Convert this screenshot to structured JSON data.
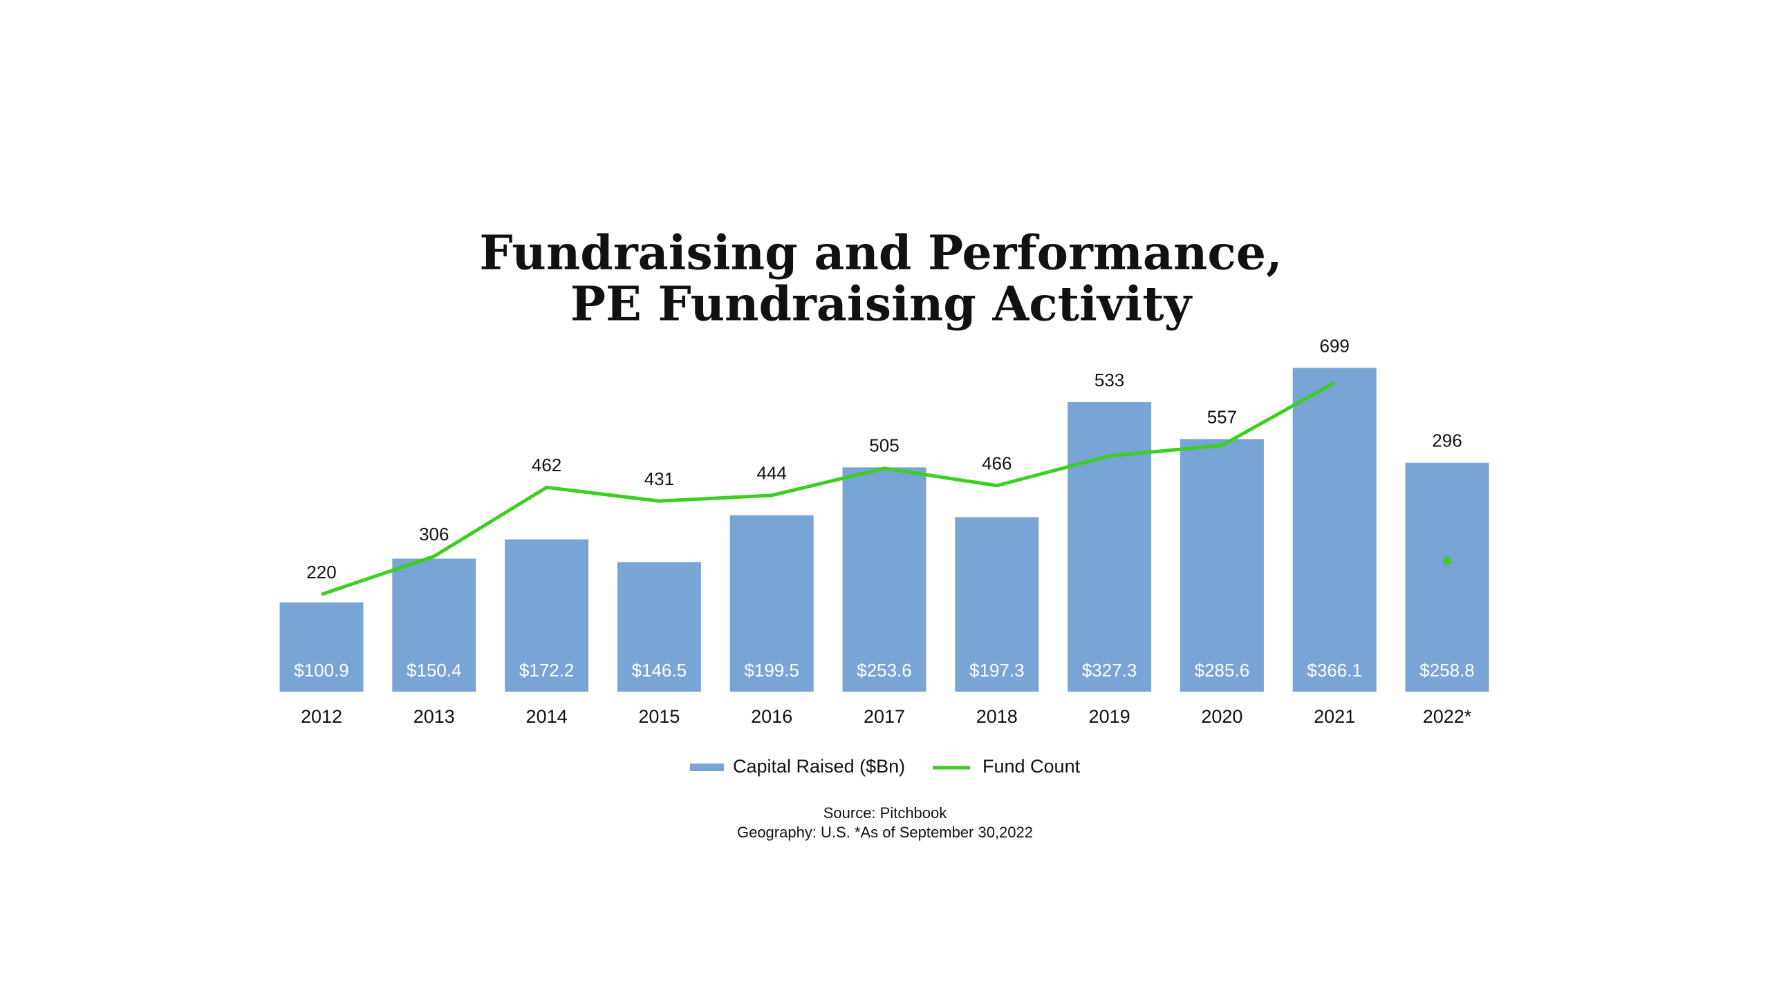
{
  "chart_data": {
    "type": "bar-line",
    "title": [
      "Fundraising and Performance,",
      "PE Fundraising Activity"
    ],
    "categories": [
      "2012",
      "2013",
      "2014",
      "2015",
      "2016",
      "2017",
      "2018",
      "2019",
      "2020",
      "2021",
      "2022*"
    ],
    "series": [
      {
        "name": "Capital Raised ($Bn)",
        "type": "bar",
        "color": "#78a5d6",
        "values": [
          100.9,
          150.4,
          172.2,
          146.5,
          199.5,
          253.6,
          197.3,
          327.3,
          285.6,
          366.1,
          258.8
        ],
        "value_labels": [
          "$100.9",
          "$150.4",
          "$172.2",
          "$146.5",
          "$199.5",
          "$253.6",
          "$197.3",
          "$327.3",
          "$285.6",
          "$366.1",
          "$258.8"
        ]
      },
      {
        "name": "Fund Count",
        "type": "line",
        "axis": "y2",
        "color": "#3ccf1f",
        "values": [
          220,
          306,
          462,
          431,
          444,
          505,
          466,
          533,
          557,
          699,
          296
        ]
      }
    ],
    "ylim": [
      0,
      400
    ],
    "y2lim": [
      0,
      800
    ],
    "grid": false,
    "source": [
      "Source: Pitchbook",
      "Geography: U.S. *As of September 30,2022"
    ]
  }
}
